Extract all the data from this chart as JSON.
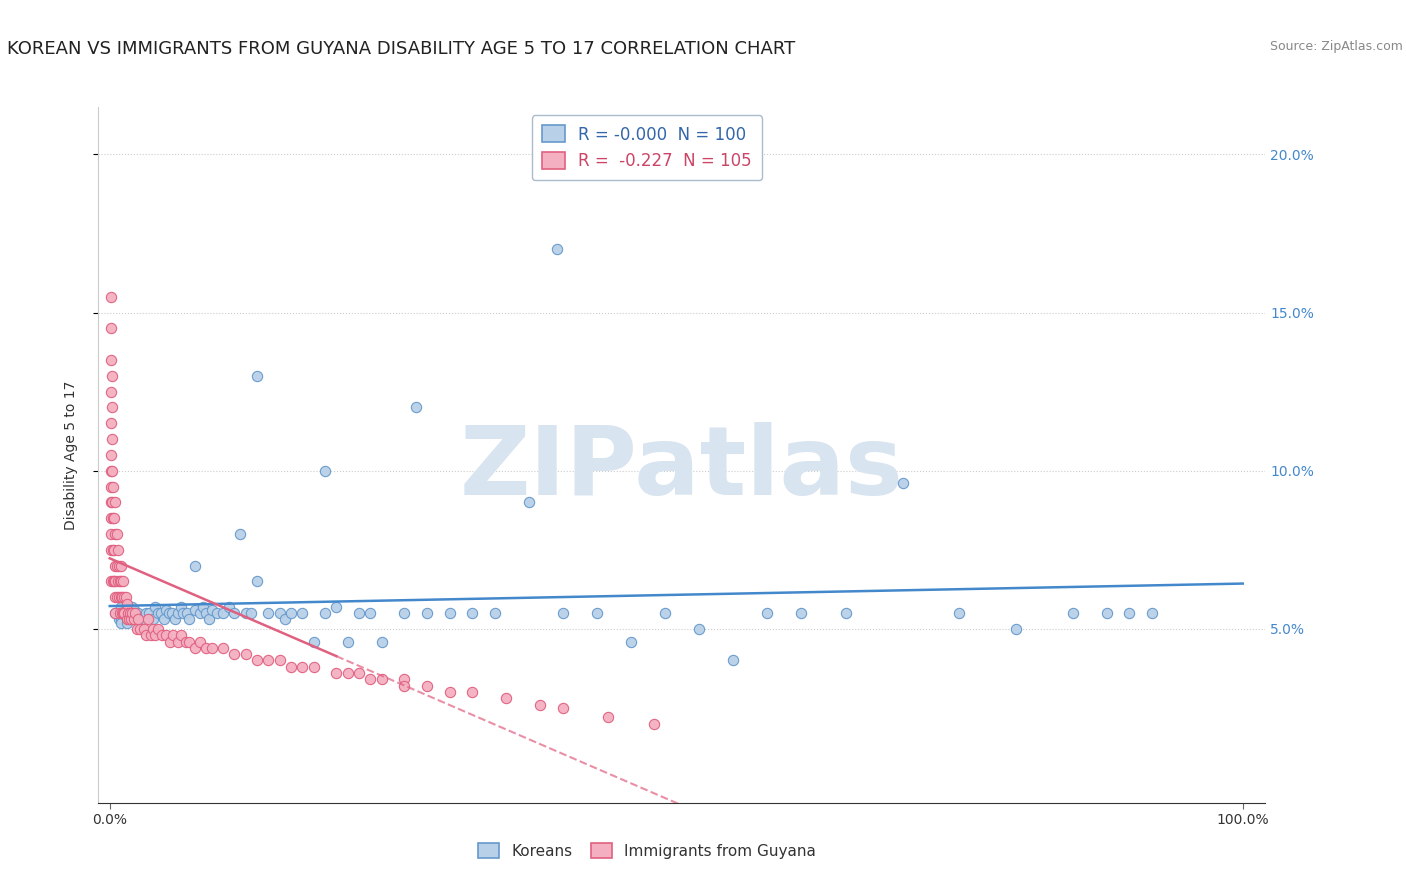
{
  "title": "KOREAN VS IMMIGRANTS FROM GUYANA DISABILITY AGE 5 TO 17 CORRELATION CHART",
  "source": "Source: ZipAtlas.com",
  "ylabel": "Disability Age 5 to 17",
  "x_tick_labels": [
    "0.0%",
    "100.0%"
  ],
  "y_tick_labels_left": [],
  "y_tick_labels_right": [
    "5.0%",
    "10.0%",
    "15.0%",
    "20.0%"
  ],
  "y_tick_values": [
    0.05,
    0.1,
    0.15,
    0.2
  ],
  "legend_labels_bottom": [
    "Koreans",
    "Immigrants from Guyana"
  ],
  "korean_color": "#b8d0e8",
  "korean_edge_color": "#6699cc",
  "guyana_color": "#f4b0c0",
  "guyana_edge_color": "#e06080",
  "korean_trend_color": "#4488cc",
  "guyana_trend_color": "#e06080",
  "watermark_text": "ZIPatlas",
  "watermark_color": "#d8e4ef",
  "background_color": "#ffffff",
  "title_fontsize": 13,
  "axis_label_fontsize": 10,
  "tick_fontsize": 10,
  "source_fontsize": 9,
  "korean_R": -0.0,
  "korean_N": 100,
  "guyana_R": -0.227,
  "guyana_N": 105,
  "legend1_R_korean": "R = -0.000",
  "legend1_N_korean": "N = 100",
  "legend1_R_guyana": "R =  -0.227",
  "legend1_N_guyana": "N = 105",
  "korean_scatter_x": [
    0.005,
    0.007,
    0.008,
    0.009,
    0.01,
    0.01,
    0.01,
    0.01,
    0.01,
    0.012,
    0.013,
    0.014,
    0.015,
    0.015,
    0.015,
    0.015,
    0.015,
    0.016,
    0.017,
    0.018,
    0.018,
    0.018,
    0.019,
    0.02,
    0.02,
    0.02,
    0.021,
    0.022,
    0.025,
    0.027,
    0.03,
    0.032,
    0.035,
    0.038,
    0.04,
    0.043,
    0.045,
    0.048,
    0.05,
    0.052,
    0.055,
    0.058,
    0.06,
    0.063,
    0.065,
    0.068,
    0.07,
    0.075,
    0.08,
    0.082,
    0.085,
    0.088,
    0.09,
    0.095,
    0.1,
    0.105,
    0.11,
    0.115,
    0.12,
    0.125,
    0.13,
    0.14,
    0.15,
    0.155,
    0.16,
    0.17,
    0.18,
    0.19,
    0.2,
    0.21,
    0.22,
    0.23,
    0.24,
    0.26,
    0.28,
    0.3,
    0.32,
    0.34,
    0.37,
    0.4,
    0.43,
    0.46,
    0.49,
    0.52,
    0.55,
    0.58,
    0.61,
    0.65,
    0.7,
    0.75,
    0.8,
    0.85,
    0.88,
    0.9,
    0.92,
    0.395,
    0.27,
    0.19,
    0.13,
    0.075
  ],
  "korean_scatter_y": [
    0.055,
    0.055,
    0.053,
    0.055,
    0.053,
    0.055,
    0.057,
    0.055,
    0.052,
    0.055,
    0.055,
    0.054,
    0.055,
    0.053,
    0.057,
    0.055,
    0.052,
    0.056,
    0.055,
    0.055,
    0.054,
    0.053,
    0.055,
    0.053,
    0.057,
    0.055,
    0.056,
    0.055,
    0.055,
    0.053,
    0.053,
    0.055,
    0.055,
    0.053,
    0.057,
    0.055,
    0.055,
    0.053,
    0.056,
    0.055,
    0.055,
    0.053,
    0.055,
    0.057,
    0.055,
    0.055,
    0.053,
    0.056,
    0.055,
    0.057,
    0.055,
    0.053,
    0.056,
    0.055,
    0.055,
    0.057,
    0.055,
    0.08,
    0.055,
    0.055,
    0.065,
    0.055,
    0.055,
    0.053,
    0.055,
    0.055,
    0.046,
    0.055,
    0.057,
    0.046,
    0.055,
    0.055,
    0.046,
    0.055,
    0.055,
    0.055,
    0.055,
    0.055,
    0.09,
    0.055,
    0.055,
    0.046,
    0.055,
    0.05,
    0.04,
    0.055,
    0.055,
    0.055,
    0.096,
    0.055,
    0.05,
    0.055,
    0.055,
    0.055,
    0.055,
    0.17,
    0.12,
    0.1,
    0.13,
    0.07
  ],
  "guyana_scatter_x": [
    0.001,
    0.001,
    0.001,
    0.001,
    0.001,
    0.001,
    0.001,
    0.001,
    0.001,
    0.001,
    0.001,
    0.001,
    0.001,
    0.002,
    0.002,
    0.002,
    0.002,
    0.002,
    0.003,
    0.003,
    0.003,
    0.003,
    0.004,
    0.004,
    0.004,
    0.005,
    0.005,
    0.005,
    0.005,
    0.005,
    0.005,
    0.006,
    0.006,
    0.006,
    0.007,
    0.007,
    0.008,
    0.008,
    0.009,
    0.009,
    0.01,
    0.01,
    0.01,
    0.011,
    0.011,
    0.012,
    0.012,
    0.013,
    0.013,
    0.014,
    0.015,
    0.015,
    0.016,
    0.017,
    0.018,
    0.019,
    0.02,
    0.021,
    0.022,
    0.024,
    0.025,
    0.027,
    0.03,
    0.032,
    0.034,
    0.036,
    0.038,
    0.04,
    0.043,
    0.046,
    0.05,
    0.053,
    0.056,
    0.06,
    0.063,
    0.067,
    0.07,
    0.075,
    0.08,
    0.085,
    0.09,
    0.1,
    0.11,
    0.12,
    0.13,
    0.14,
    0.16,
    0.18,
    0.2,
    0.22,
    0.24,
    0.26,
    0.28,
    0.3,
    0.32,
    0.35,
    0.38,
    0.4,
    0.44,
    0.48,
    0.15,
    0.17,
    0.21,
    0.23,
    0.26
  ],
  "guyana_scatter_y": [
    0.145,
    0.135,
    0.125,
    0.115,
    0.105,
    0.095,
    0.085,
    0.075,
    0.065,
    0.08,
    0.09,
    0.1,
    0.155,
    0.12,
    0.11,
    0.13,
    0.1,
    0.09,
    0.095,
    0.085,
    0.075,
    0.065,
    0.085,
    0.075,
    0.065,
    0.09,
    0.08,
    0.07,
    0.065,
    0.06,
    0.055,
    0.08,
    0.07,
    0.06,
    0.075,
    0.065,
    0.07,
    0.06,
    0.065,
    0.055,
    0.065,
    0.06,
    0.07,
    0.06,
    0.055,
    0.065,
    0.055,
    0.06,
    0.055,
    0.06,
    0.058,
    0.053,
    0.055,
    0.053,
    0.055,
    0.053,
    0.055,
    0.053,
    0.055,
    0.05,
    0.053,
    0.05,
    0.05,
    0.048,
    0.053,
    0.048,
    0.05,
    0.048,
    0.05,
    0.048,
    0.048,
    0.046,
    0.048,
    0.046,
    0.048,
    0.046,
    0.046,
    0.044,
    0.046,
    0.044,
    0.044,
    0.044,
    0.042,
    0.042,
    0.04,
    0.04,
    0.038,
    0.038,
    0.036,
    0.036,
    0.034,
    0.034,
    0.032,
    0.03,
    0.03,
    0.028,
    0.026,
    0.025,
    0.022,
    0.02,
    0.04,
    0.038,
    0.036,
    0.034,
    0.032
  ]
}
